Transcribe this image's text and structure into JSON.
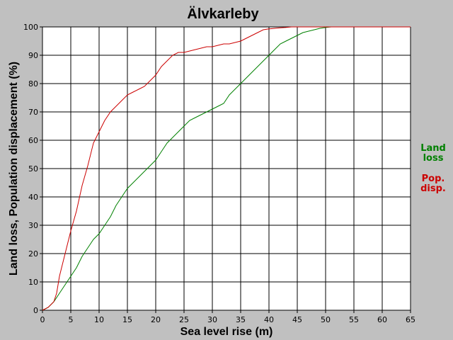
{
  "chart_data": {
    "type": "line",
    "title": "Älvkarleby",
    "xlabel": "Sea level rise (m)",
    "ylabel": "Land loss, Population displacement (%)",
    "xlim": [
      0,
      65
    ],
    "ylim": [
      0,
      100
    ],
    "xticks": [
      "0",
      "5",
      "10",
      "15",
      "20",
      "25",
      "30",
      "35",
      "40",
      "45",
      "50",
      "55",
      "60",
      "65"
    ],
    "yticks": [
      "0",
      "10",
      "20",
      "30",
      "40",
      "50",
      "60",
      "70",
      "80",
      "90",
      "100"
    ],
    "grid": true,
    "legend_position": "right",
    "series": [
      {
        "name": "Land loss",
        "legend_line1": "Land",
        "legend_line2": "loss",
        "color": "#008000",
        "x": [
          0,
          1,
          2,
          3,
          4,
          5,
          6,
          7,
          8,
          9,
          10,
          11,
          12,
          13,
          14,
          15,
          16,
          17,
          18,
          19,
          20,
          21,
          22,
          23,
          24,
          25,
          26,
          27,
          28,
          29,
          30,
          31,
          32,
          33,
          34,
          35,
          36,
          37,
          38,
          39,
          40,
          41,
          42,
          43,
          44,
          45,
          46,
          47,
          48,
          49,
          50,
          51,
          52,
          53,
          55,
          60,
          65
        ],
        "y": [
          0,
          1,
          3,
          6,
          9,
          12,
          15,
          19,
          22,
          25,
          27,
          30,
          33,
          37,
          40,
          43,
          45,
          47,
          49,
          51,
          53,
          56,
          59,
          61,
          63,
          65,
          67,
          68,
          69,
          70,
          71,
          72,
          73,
          76,
          78,
          80,
          82,
          84,
          86,
          88,
          90,
          92,
          94,
          95,
          96,
          97,
          98,
          98.5,
          99,
          99.5,
          99.8,
          100,
          100,
          100,
          100,
          100,
          100
        ]
      },
      {
        "name": "Pop. disp.",
        "legend_line1": "Pop.",
        "legend_line2": "disp.",
        "color": "#cc0000",
        "x": [
          0,
          1,
          2,
          2.5,
          3,
          4,
          5,
          6,
          7,
          8,
          9,
          10,
          11,
          12,
          13,
          14,
          15,
          16,
          17,
          18,
          19,
          20,
          21,
          22,
          23,
          24,
          25,
          26,
          27,
          28,
          29,
          30,
          31,
          32,
          33,
          34,
          35,
          36,
          37,
          38,
          39,
          40,
          41,
          42,
          43,
          44,
          45,
          46,
          47,
          48,
          49,
          50,
          55,
          60,
          65
        ],
        "y": [
          0,
          1,
          3,
          6,
          12,
          20,
          28,
          35,
          44,
          51,
          59,
          63,
          67,
          70,
          72,
          74,
          76,
          77,
          78,
          79,
          81,
          83,
          86,
          88,
          90,
          91,
          91,
          91.5,
          92,
          92.5,
          93,
          93,
          93.5,
          94,
          94,
          94.5,
          95,
          96,
          97,
          98,
          99,
          99.3,
          99.5,
          99.7,
          99.8,
          100,
          100,
          100,
          100,
          100,
          100,
          100,
          100,
          100,
          100
        ]
      }
    ]
  }
}
